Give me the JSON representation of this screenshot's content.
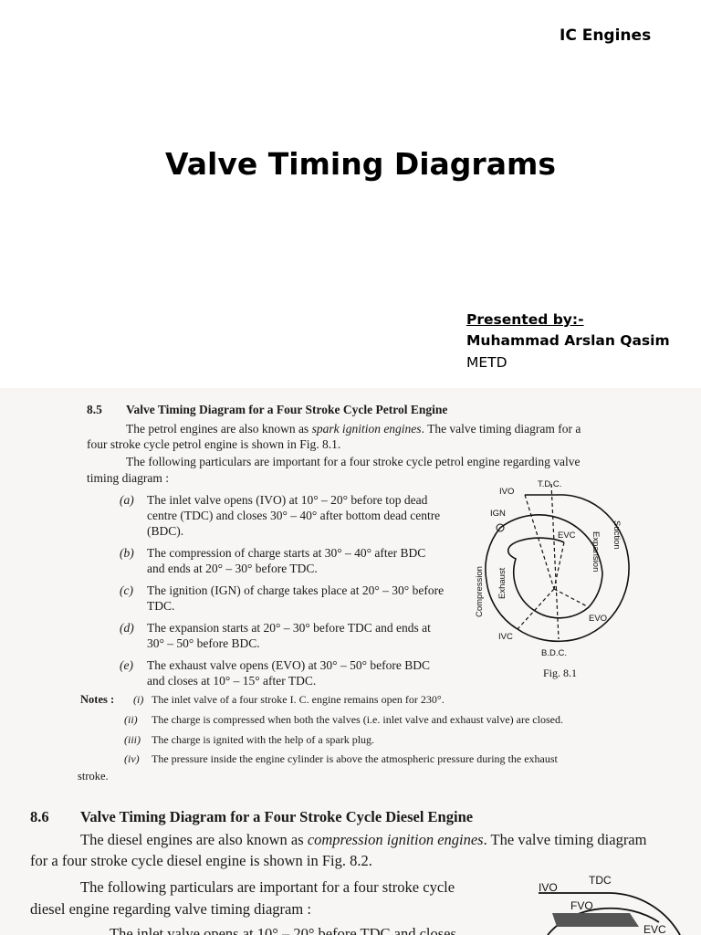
{
  "header": {
    "course": "IC Engines"
  },
  "title": "Valve Timing Diagrams",
  "presenter": {
    "label": "Presented by:-",
    "name": "Muhammad Arslan Qasim",
    "dept": "METD"
  },
  "section_85": {
    "number": "8.5",
    "heading": "Valve Timing Diagram for a Four Stroke Cycle Petrol Engine",
    "intro1a": "The petrol engines are also known as ",
    "intro1b": "spark ignition engines",
    "intro1c": ". The valve timing diagram for a",
    "intro1d": "four stroke cycle petrol engine is shown in Fig. 8.1.",
    "intro2a": "The following particulars are important for a four stroke cycle petrol engine regarding valve",
    "intro2b": "timing diagram :",
    "items": [
      {
        "mark": "(a)",
        "lines": [
          "The inlet valve opens (IVO) at 10° – 20° before top dead",
          "centre (TDC) and closes 30° – 40° after bottom dead centre",
          "(BDC)."
        ]
      },
      {
        "mark": "(b)",
        "lines": [
          "The compression of charge starts at 30° – 40° after BDC",
          "and ends at 20° – 30° before TDC."
        ]
      },
      {
        "mark": "(c)",
        "lines": [
          "The ignition (IGN) of charge takes place at 20° – 30° before",
          "TDC."
        ]
      },
      {
        "mark": "(d)",
        "lines": [
          "The expansion starts at 20° – 30°  before TDC and ends at",
          "30° – 50° before BDC."
        ]
      },
      {
        "mark": "(e)",
        "lines": [
          "The exhaust valve opens (EVO) at 30° – 50° before BDC",
          "and closes at 10° – 15°  after TDC."
        ]
      }
    ],
    "notes_label": "Notes :",
    "notes": [
      {
        "mark": "(i)",
        "text": "The inlet valve of a four stroke I. C. engine remains open for 230°."
      },
      {
        "mark": "(ii)",
        "text": "The charge is compressed when both the valves (i.e. inlet valve and exhaust valve) are closed."
      },
      {
        "mark": "(iii)",
        "text": "The charge is ignited with the help of a spark plug."
      },
      {
        "mark": "(iv)",
        "text": "The pressure inside the engine cylinder is above the atmospheric pressure during the exhaust"
      }
    ],
    "notes_tail": "stroke.",
    "figure": {
      "caption": "Fig. 8.1",
      "labels": {
        "tdc": "T.D.C.",
        "bdc": "B.D.C.",
        "ivo": "IVO",
        "ivc": "IVC",
        "ign": "IGN",
        "evc": "EVC",
        "evo": "EVO",
        "suction": "Suction",
        "expansion": "Expansion",
        "compression": "Compression",
        "exhaust": "Exhaust"
      }
    }
  },
  "section_86": {
    "number": "8.6",
    "heading": "Valve Timing Diagram for a Four Stroke Cycle Diesel Engine",
    "intro1a": "The diesel engines are also known as ",
    "intro1b": "compression ignition engines",
    "intro1c": ". The valve timing diagram",
    "intro1d": "for a four stroke cycle diesel  engine is shown in Fig. 8.2.",
    "intro2a": "The following particulars are important for a four stroke cycle",
    "intro2b": "diesel engine regarding valve timing diagram :",
    "partial": "The inlet valve opens at 10° – 20° before TDC and closes",
    "figure": {
      "labels": {
        "ivo": "IVO",
        "tdc": "TDC",
        "fvo": "FVO",
        "evc": "EVC"
      }
    }
  }
}
